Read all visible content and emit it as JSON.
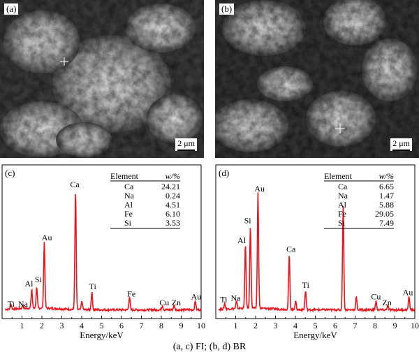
{
  "figure": {
    "caption": "(a, c) FI; (b, d) BR"
  },
  "sem_panels": [
    {
      "label": "(a)",
      "scale_label": "2 μm"
    },
    {
      "label": "(b)",
      "scale_label": "2 μm"
    }
  ],
  "chart_data": [
    {
      "type": "line",
      "panel_label": "(c)",
      "xlabel": "Energy/keV",
      "xlim": [
        0,
        10
      ],
      "x_ticks": [
        "1",
        "2",
        "3",
        "4",
        "5",
        "6",
        "7",
        "8",
        "9",
        "10"
      ],
      "line_color": "#e8141e",
      "peaks": [
        {
          "element": "Ti",
          "energy": 0.45,
          "height": 0.03
        },
        {
          "element": "Na",
          "energy": 1.04,
          "height": 0.02
        },
        {
          "element": "Al",
          "energy": 1.49,
          "height": 0.13
        },
        {
          "element": "Si",
          "energy": 1.74,
          "height": 0.14
        },
        {
          "element": "Au",
          "energy": 2.12,
          "height": 0.46
        },
        {
          "element": "Ca",
          "energy": 3.69,
          "height": 0.82
        },
        {
          "element": "Ca",
          "energy": 4.01,
          "height": 0.06
        },
        {
          "element": "Ti",
          "energy": 4.51,
          "height": 0.12
        },
        {
          "element": "Fe",
          "energy": 6.4,
          "height": 0.09
        },
        {
          "element": "Cu",
          "energy": 8.05,
          "height": 0.03
        },
        {
          "element": "Zn",
          "energy": 8.64,
          "height": 0.03
        },
        {
          "element": "Au",
          "energy": 9.71,
          "height": 0.06
        }
      ],
      "peak_labels": [
        {
          "text": "Ti",
          "x": 0.45,
          "y": 0.03
        },
        {
          "text": "Na",
          "x": 1.05,
          "y": 0.03
        },
        {
          "text": "Al",
          "x": 1.35,
          "y": 0.17
        },
        {
          "text": "Si",
          "x": 1.82,
          "y": 0.2
        },
        {
          "text": "Au",
          "x": 2.25,
          "y": 0.49
        },
        {
          "text": "Ca",
          "x": 3.65,
          "y": 0.86
        },
        {
          "text": "Ti",
          "x": 4.55,
          "y": 0.15
        },
        {
          "text": "Fe",
          "x": 6.5,
          "y": 0.1
        },
        {
          "text": "Cu",
          "x": 8.15,
          "y": 0.04
        },
        {
          "text": "Zn",
          "x": 8.75,
          "y": 0.04
        },
        {
          "text": "Au",
          "x": 9.75,
          "y": 0.08
        }
      ],
      "table": {
        "col_element": "Element",
        "col_w": "w/%",
        "rows": [
          {
            "element": "Ca",
            "w": "24.21"
          },
          {
            "element": "Na",
            "w": "0.24"
          },
          {
            "element": "Al",
            "w": "4.51"
          },
          {
            "element": "Fe",
            "w": "6.10"
          },
          {
            "element": "Si",
            "w": "3.53"
          }
        ]
      }
    },
    {
      "type": "line",
      "panel_label": "(d)",
      "xlabel": "Energy/keV",
      "xlim": [
        0,
        10
      ],
      "x_ticks": [
        "1",
        "2",
        "3",
        "4",
        "5",
        "6",
        "7",
        "8",
        "9",
        "10"
      ],
      "line_color": "#e8141e",
      "peaks": [
        {
          "element": "Ti",
          "energy": 0.45,
          "height": 0.04
        },
        {
          "element": "Na",
          "energy": 1.04,
          "height": 0.05
        },
        {
          "element": "Al",
          "energy": 1.49,
          "height": 0.44
        },
        {
          "element": "Si",
          "energy": 1.74,
          "height": 0.57
        },
        {
          "element": "Au",
          "energy": 2.12,
          "height": 0.8
        },
        {
          "element": "Ca",
          "energy": 3.69,
          "height": 0.38
        },
        {
          "element": "Ca",
          "energy": 4.01,
          "height": 0.06
        },
        {
          "element": "Ti",
          "energy": 4.51,
          "height": 0.13
        },
        {
          "element": "Fe",
          "energy": 6.4,
          "height": 0.73
        },
        {
          "element": "Fe",
          "energy": 7.06,
          "height": 0.09
        },
        {
          "element": "Cu",
          "energy": 8.05,
          "height": 0.06
        },
        {
          "element": "Zn",
          "energy": 8.64,
          "height": 0.03
        },
        {
          "element": "Au",
          "energy": 9.71,
          "height": 0.09
        }
      ],
      "peak_labels": [
        {
          "text": "Ti",
          "x": 0.4,
          "y": 0.06
        },
        {
          "text": "Na",
          "x": 1.0,
          "y": 0.07
        },
        {
          "text": "Al",
          "x": 1.3,
          "y": 0.47
        },
        {
          "text": "Si",
          "x": 1.6,
          "y": 0.61
        },
        {
          "text": "Au",
          "x": 2.2,
          "y": 0.83
        },
        {
          "text": "Ca",
          "x": 3.78,
          "y": 0.41
        },
        {
          "text": "Ti",
          "x": 4.52,
          "y": 0.16
        },
        {
          "text": "Cu",
          "x": 8.05,
          "y": 0.08
        },
        {
          "text": "Zn",
          "x": 8.6,
          "y": 0.04
        },
        {
          "text": "Au",
          "x": 9.65,
          "y": 0.11
        }
      ],
      "table": {
        "col_element": "Element",
        "col_w": "w/%",
        "rows": [
          {
            "element": "Ca",
            "w": "6.65"
          },
          {
            "element": "Na",
            "w": "1.47"
          },
          {
            "element": "Al",
            "w": "5.88"
          },
          {
            "element": "Fe",
            "w": "29.05"
          },
          {
            "element": "Si",
            "w": "7.49"
          }
        ]
      }
    }
  ]
}
